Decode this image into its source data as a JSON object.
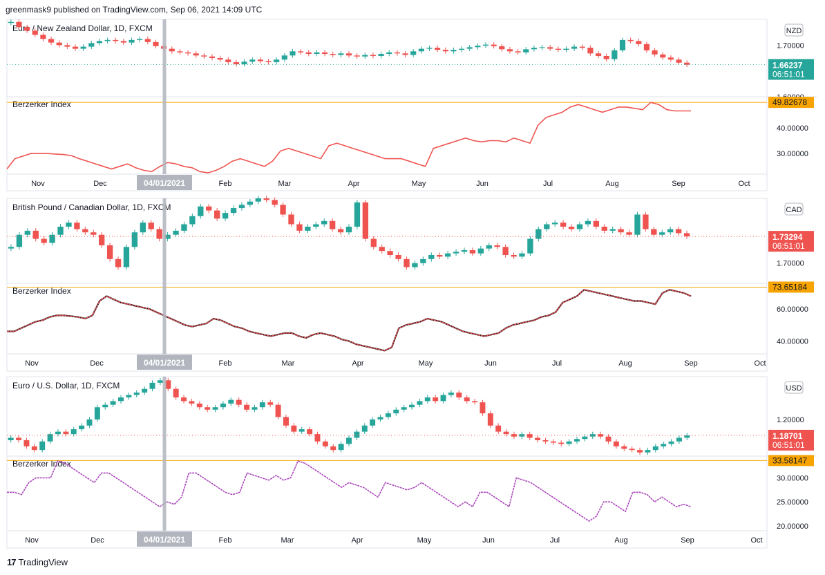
{
  "header": {
    "text": "greenmask9 published on TradingView.com, Sep 06, 2021 14:09 UTC"
  },
  "footer": {
    "brand": "TradingView",
    "logo_icon": "tradingview-logo-icon"
  },
  "colors": {
    "up": "#26a69a",
    "down": "#ef5350",
    "pane_border": "#e0e3eb",
    "level_line": "#f7a400",
    "hline_label_bg": "#f7a400",
    "crosshair": "#b2b5be"
  },
  "crosshair": {
    "date_label": "04/01/2021"
  },
  "chart_data": [
    {
      "type": "candlestick",
      "title": "Euro / New Zealand Dollar, 1D, FXCM",
      "currency": "NZD",
      "y_ticks": [
        "1.70000",
        "1.60000"
      ],
      "y_range": [
        1.6,
        1.75
      ],
      "last_price": "1.66237",
      "countdown": "06:51:01",
      "last_color": "#26a69a",
      "close_path": [
        1.745,
        1.735,
        1.728,
        1.72,
        1.712,
        1.705,
        1.7,
        1.697,
        1.693,
        1.697,
        1.704,
        1.708,
        1.71,
        1.708,
        1.705,
        1.71,
        1.712,
        1.706,
        1.698,
        1.693,
        1.688,
        1.686,
        1.684,
        1.68,
        1.678,
        1.675,
        1.672,
        1.667,
        1.663,
        1.668,
        1.672,
        1.669,
        1.667,
        1.672,
        1.68,
        1.688,
        1.686,
        1.683,
        1.686,
        1.683,
        1.681,
        1.684,
        1.68,
        1.678,
        1.681,
        1.679,
        1.683,
        1.686,
        1.684,
        1.681,
        1.688,
        1.693,
        1.695,
        1.691,
        1.688,
        1.691,
        1.693,
        1.696,
        1.699,
        1.701,
        1.698,
        1.692,
        1.688,
        1.686,
        1.692,
        1.695,
        1.696,
        1.693,
        1.691,
        1.693,
        1.697,
        1.695,
        1.684,
        1.679,
        1.673,
        1.69,
        1.71,
        1.708,
        1.702,
        1.69,
        1.682,
        1.676,
        1.672,
        1.666,
        1.662
      ],
      "indicator": {
        "name": "Berzerker Index",
        "level_label": "49.82678",
        "level_value": 49.82678,
        "y_ticks": [
          "40.00000",
          "30.00000"
        ],
        "y_range": [
          22,
          52
        ],
        "line_color": "#ef5350",
        "path": [
          24,
          28,
          29,
          30,
          30,
          30,
          29.8,
          29.6,
          29.2,
          28,
          27,
          26,
          25,
          24,
          25,
          26,
          24.5,
          23.5,
          23,
          25,
          26.5,
          26,
          25,
          24.5,
          23,
          22.5,
          23.5,
          25,
          27,
          28,
          27,
          26,
          25,
          27,
          31,
          32,
          31,
          30,
          29,
          28,
          33,
          34,
          33,
          32,
          31,
          30,
          29,
          28,
          28,
          28,
          27,
          26,
          25,
          32,
          33,
          34,
          35,
          36,
          35,
          34.5,
          35,
          35,
          34.5,
          36,
          35,
          34,
          41,
          44,
          45,
          46,
          48,
          49,
          48,
          47,
          46,
          47,
          48,
          48,
          47.5,
          47,
          49.8,
          49,
          47,
          46.5,
          46.5,
          46.5
        ]
      },
      "x_ticks": [
        "Nov",
        "Dec",
        "Feb",
        "Mar",
        "Apr",
        "May",
        "Jun",
        "Jul",
        "Aug",
        "Sep",
        "Oct"
      ]
    },
    {
      "type": "candlestick",
      "title": "British Pound / Canadian Dollar, 1D, FXCM",
      "currency": "CAD",
      "y_ticks": [
        "1.70000"
      ],
      "y_range": [
        1.675,
        1.78
      ],
      "last_price": "1.73294",
      "countdown": "06:51:01",
      "last_color": "#ef5350",
      "close_path": [
        1.72,
        1.735,
        1.74,
        1.73,
        1.725,
        1.735,
        1.745,
        1.75,
        1.742,
        1.738,
        1.735,
        1.722,
        1.705,
        1.695,
        1.72,
        1.738,
        1.75,
        1.742,
        1.73,
        1.735,
        1.74,
        1.748,
        1.758,
        1.77,
        1.765,
        1.755,
        1.762,
        1.768,
        1.772,
        1.776,
        1.78,
        1.778,
        1.772,
        1.76,
        1.748,
        1.74,
        1.745,
        1.748,
        1.752,
        1.742,
        1.738,
        1.745,
        1.775,
        1.73,
        1.72,
        1.715,
        1.71,
        1.705,
        1.695,
        1.7,
        1.705,
        1.71,
        1.708,
        1.712,
        1.714,
        1.716,
        1.712,
        1.718,
        1.722,
        1.72,
        1.71,
        1.708,
        1.712,
        1.73,
        1.742,
        1.748,
        1.75,
        1.745,
        1.742,
        1.748,
        1.752,
        1.745,
        1.74,
        1.742,
        1.738,
        1.735,
        1.76,
        1.742,
        1.735,
        1.738,
        1.742,
        1.737,
        1.733
      ],
      "indicator": {
        "name": "Berzerker Index",
        "level_label": "73.65184",
        "level_value": 73.65184,
        "y_ticks": [
          "60.00000",
          "40.00000"
        ],
        "y_range": [
          32,
          76
        ],
        "line_color": "#ef5350",
        "path": [
          46,
          46,
          48,
          50,
          52,
          53,
          55,
          56,
          56,
          55.5,
          55,
          54,
          56,
          65,
          68,
          66,
          64,
          63,
          62,
          61,
          60,
          58,
          56,
          54,
          52,
          50,
          49,
          50,
          51,
          54,
          53,
          51,
          49,
          48,
          46,
          45,
          44,
          43,
          44,
          45,
          45,
          43,
          42,
          44,
          45,
          44,
          43,
          41,
          40,
          38,
          37,
          36,
          35,
          34,
          36,
          48,
          50,
          51,
          52,
          54,
          53,
          52,
          50,
          48,
          46,
          45,
          44,
          43,
          44,
          45,
          48,
          50,
          51,
          52,
          53,
          55,
          56,
          58,
          64,
          66,
          68,
          72,
          71,
          70,
          69,
          68,
          67,
          66,
          65,
          65,
          64,
          63,
          70,
          72,
          71,
          70,
          68
        ]
      },
      "x_ticks": [
        "Nov",
        "Dec",
        "Feb",
        "Mar",
        "Apr",
        "May",
        "Jun",
        "Jul",
        "Aug",
        "Sep",
        "Oct"
      ]
    },
    {
      "type": "candlestick",
      "title": "Euro / U.S. Dollar, 1D, FXCM",
      "currency": "USD",
      "y_ticks": [
        "1.20000"
      ],
      "y_range": [
        1.17,
        1.235
      ],
      "last_price": "1.18701",
      "countdown": "06:51:01",
      "last_color": "#ef5350",
      "close_path": [
        1.185,
        1.183,
        1.178,
        1.175,
        1.182,
        1.188,
        1.19,
        1.188,
        1.192,
        1.195,
        1.2,
        1.21,
        1.212,
        1.215,
        1.218,
        1.22,
        1.222,
        1.225,
        1.23,
        1.232,
        1.225,
        1.218,
        1.215,
        1.213,
        1.21,
        1.208,
        1.21,
        1.213,
        1.216,
        1.212,
        1.208,
        1.21,
        1.214,
        1.212,
        1.202,
        1.195,
        1.19,
        1.192,
        1.188,
        1.182,
        1.178,
        1.175,
        1.18,
        1.185,
        1.19,
        1.195,
        1.2,
        1.202,
        1.205,
        1.208,
        1.21,
        1.212,
        1.215,
        1.218,
        1.215,
        1.22,
        1.222,
        1.218,
        1.215,
        1.214,
        1.205,
        1.195,
        1.19,
        1.188,
        1.186,
        1.188,
        1.185,
        1.183,
        1.182,
        1.181,
        1.18,
        1.182,
        1.184,
        1.186,
        1.188,
        1.186,
        1.182,
        1.178,
        1.176,
        1.175,
        1.173,
        1.175,
        1.178,
        1.18,
        1.182,
        1.185,
        1.187
      ],
      "indicator": {
        "name": "Berzerker Index",
        "level_label": "33.58147",
        "level_value": 33.58147,
        "y_ticks": [
          "30.00000",
          "25.00000",
          "20.00000"
        ],
        "y_range": [
          19,
          34.5
        ],
        "line_color": "#ab47bc",
        "path": [
          27,
          27,
          26.5,
          29,
          30,
          30,
          30,
          33.5,
          33,
          32,
          31,
          30,
          29,
          31,
          31,
          30,
          29,
          28,
          27,
          26,
          25,
          24,
          25,
          24.5,
          26,
          31,
          31,
          30,
          29,
          28,
          27,
          26.5,
          27,
          31,
          30.5,
          30,
          29.5,
          30.5,
          29.5,
          30,
          33.5,
          33,
          32,
          31,
          30,
          29,
          28,
          29,
          28.5,
          28,
          27,
          26,
          29,
          28.5,
          28,
          27.5,
          28,
          29,
          28,
          27,
          26,
          25,
          24,
          25,
          24,
          27,
          27,
          26,
          25,
          24,
          30,
          29.5,
          29,
          28,
          27,
          26,
          25,
          24,
          23,
          22,
          21,
          22,
          25,
          25,
          24,
          23,
          27,
          27,
          26.5,
          25,
          26,
          25,
          24,
          24.5,
          24
        ]
      },
      "x_ticks": [
        "Nov",
        "Dec",
        "Feb",
        "Mar",
        "Apr",
        "May",
        "Jun",
        "Jul",
        "Aug",
        "Sep",
        "Oct"
      ]
    }
  ]
}
